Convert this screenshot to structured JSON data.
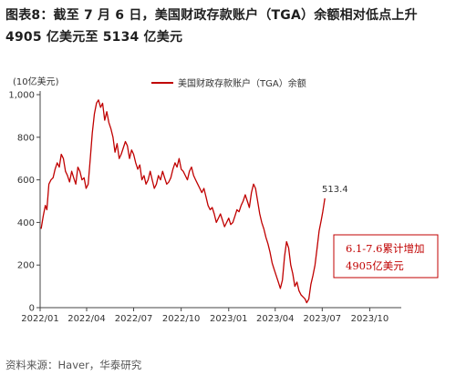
{
  "header": {
    "figure_label": "图表8：",
    "title_line1": "截至 7 月 6 日，美国财政存款账户（TGA）余额相对低点上升",
    "title_line2": "4905 亿美元至 5134 亿美元"
  },
  "footer": {
    "source": "资料来源：Haver，华泰研究"
  },
  "chart_data": {
    "type": "line",
    "unit_label": "(10亿美元)",
    "ylim": [
      0,
      1000
    ],
    "yticks": [
      0,
      200,
      400,
      600,
      800,
      1000
    ],
    "ytick_labels": [
      "0",
      "200",
      "400",
      "600",
      "800",
      "1,000"
    ],
    "xticks": [
      "2022/01",
      "2022/04",
      "2022/07",
      "2022/10",
      "2023/01",
      "2023/04",
      "2023/07",
      "2023/10"
    ],
    "xlim": [
      "2022-01-01",
      "2023-12-01"
    ],
    "legend": {
      "entries": [
        "美国财政存款账户（TGA）余额"
      ],
      "placement": "top-center"
    },
    "line_color": "#c00000",
    "grid": false,
    "annotations": [
      {
        "text": "513.4",
        "target": "last-point"
      },
      {
        "text_line1": "6.1-7.6累计增加",
        "text_line2": "4905亿美元",
        "boxed": true
      }
    ],
    "series": [
      {
        "name": "美国财政存款账户（TGA）余额",
        "points": [
          [
            "2022-01-03",
            370
          ],
          [
            "2022-01-07",
            430
          ],
          [
            "2022-01-11",
            480
          ],
          [
            "2022-01-14",
            460
          ],
          [
            "2022-01-18",
            580
          ],
          [
            "2022-01-22",
            600
          ],
          [
            "2022-01-26",
            610
          ],
          [
            "2022-01-30",
            650
          ],
          [
            "2022-02-03",
            680
          ],
          [
            "2022-02-07",
            660
          ],
          [
            "2022-02-11",
            720
          ],
          [
            "2022-02-15",
            700
          ],
          [
            "2022-02-19",
            640
          ],
          [
            "2022-02-23",
            620
          ],
          [
            "2022-02-27",
            590
          ],
          [
            "2022-03-03",
            640
          ],
          [
            "2022-03-07",
            610
          ],
          [
            "2022-03-11",
            580
          ],
          [
            "2022-03-15",
            660
          ],
          [
            "2022-03-19",
            640
          ],
          [
            "2022-03-23",
            600
          ],
          [
            "2022-03-27",
            610
          ],
          [
            "2022-03-31",
            560
          ],
          [
            "2022-04-04",
            580
          ],
          [
            "2022-04-08",
            700
          ],
          [
            "2022-04-12",
            820
          ],
          [
            "2022-04-16",
            910
          ],
          [
            "2022-04-20",
            960
          ],
          [
            "2022-04-24",
            975
          ],
          [
            "2022-04-28",
            940
          ],
          [
            "2022-05-02",
            960
          ],
          [
            "2022-05-06",
            880
          ],
          [
            "2022-05-10",
            920
          ],
          [
            "2022-05-14",
            870
          ],
          [
            "2022-05-18",
            840
          ],
          [
            "2022-05-22",
            800
          ],
          [
            "2022-05-26",
            730
          ],
          [
            "2022-05-30",
            770
          ],
          [
            "2022-06-03",
            700
          ],
          [
            "2022-06-07",
            720
          ],
          [
            "2022-06-11",
            750
          ],
          [
            "2022-06-15",
            780
          ],
          [
            "2022-06-19",
            760
          ],
          [
            "2022-06-23",
            700
          ],
          [
            "2022-06-27",
            740
          ],
          [
            "2022-07-01",
            720
          ],
          [
            "2022-07-05",
            680
          ],
          [
            "2022-07-09",
            650
          ],
          [
            "2022-07-13",
            670
          ],
          [
            "2022-07-17",
            600
          ],
          [
            "2022-07-21",
            620
          ],
          [
            "2022-07-25",
            580
          ],
          [
            "2022-07-29",
            600
          ],
          [
            "2022-08-02",
            640
          ],
          [
            "2022-08-06",
            600
          ],
          [
            "2022-08-10",
            560
          ],
          [
            "2022-08-14",
            580
          ],
          [
            "2022-08-18",
            620
          ],
          [
            "2022-08-22",
            600
          ],
          [
            "2022-08-26",
            640
          ],
          [
            "2022-08-30",
            610
          ],
          [
            "2022-09-03",
            580
          ],
          [
            "2022-09-07",
            590
          ],
          [
            "2022-09-11",
            610
          ],
          [
            "2022-09-15",
            650
          ],
          [
            "2022-09-19",
            680
          ],
          [
            "2022-09-23",
            660
          ],
          [
            "2022-09-27",
            700
          ],
          [
            "2022-10-01",
            650
          ],
          [
            "2022-10-05",
            640
          ],
          [
            "2022-10-09",
            620
          ],
          [
            "2022-10-13",
            600
          ],
          [
            "2022-10-17",
            640
          ],
          [
            "2022-10-21",
            660
          ],
          [
            "2022-10-25",
            620
          ],
          [
            "2022-10-29",
            600
          ],
          [
            "2022-11-02",
            580
          ],
          [
            "2022-11-06",
            560
          ],
          [
            "2022-11-10",
            540
          ],
          [
            "2022-11-14",
            560
          ],
          [
            "2022-11-18",
            520
          ],
          [
            "2022-11-22",
            480
          ],
          [
            "2022-11-26",
            460
          ],
          [
            "2022-11-30",
            470
          ],
          [
            "2022-12-04",
            440
          ],
          [
            "2022-12-08",
            400
          ],
          [
            "2022-12-12",
            420
          ],
          [
            "2022-12-16",
            440
          ],
          [
            "2022-12-20",
            410
          ],
          [
            "2022-12-24",
            380
          ],
          [
            "2022-12-28",
            400
          ],
          [
            "2023-01-01",
            420
          ],
          [
            "2023-01-05",
            390
          ],
          [
            "2023-01-09",
            400
          ],
          [
            "2023-01-13",
            430
          ],
          [
            "2023-01-17",
            460
          ],
          [
            "2023-01-21",
            450
          ],
          [
            "2023-01-25",
            480
          ],
          [
            "2023-01-29",
            500
          ],
          [
            "2023-02-02",
            530
          ],
          [
            "2023-02-06",
            500
          ],
          [
            "2023-02-10",
            470
          ],
          [
            "2023-02-14",
            540
          ],
          [
            "2023-02-18",
            580
          ],
          [
            "2023-02-22",
            560
          ],
          [
            "2023-02-26",
            500
          ],
          [
            "2023-03-02",
            440
          ],
          [
            "2023-03-06",
            400
          ],
          [
            "2023-03-10",
            370
          ],
          [
            "2023-03-14",
            330
          ],
          [
            "2023-03-18",
            300
          ],
          [
            "2023-03-22",
            260
          ],
          [
            "2023-03-26",
            210
          ],
          [
            "2023-03-30",
            180
          ],
          [
            "2023-04-03",
            150
          ],
          [
            "2023-04-07",
            120
          ],
          [
            "2023-04-11",
            90
          ],
          [
            "2023-04-15",
            130
          ],
          [
            "2023-04-19",
            240
          ],
          [
            "2023-04-23",
            310
          ],
          [
            "2023-04-27",
            280
          ],
          [
            "2023-05-01",
            200
          ],
          [
            "2023-05-05",
            160
          ],
          [
            "2023-05-09",
            100
          ],
          [
            "2023-05-13",
            120
          ],
          [
            "2023-05-17",
            80
          ],
          [
            "2023-05-21",
            60
          ],
          [
            "2023-05-25",
            50
          ],
          [
            "2023-05-29",
            40
          ],
          [
            "2023-06-01",
            23
          ],
          [
            "2023-06-05",
            40
          ],
          [
            "2023-06-09",
            110
          ],
          [
            "2023-06-13",
            150
          ],
          [
            "2023-06-17",
            200
          ],
          [
            "2023-06-21",
            280
          ],
          [
            "2023-06-25",
            360
          ],
          [
            "2023-06-29",
            410
          ],
          [
            "2023-07-02",
            450
          ],
          [
            "2023-07-04",
            480
          ],
          [
            "2023-07-06",
            513.4
          ]
        ]
      }
    ]
  }
}
